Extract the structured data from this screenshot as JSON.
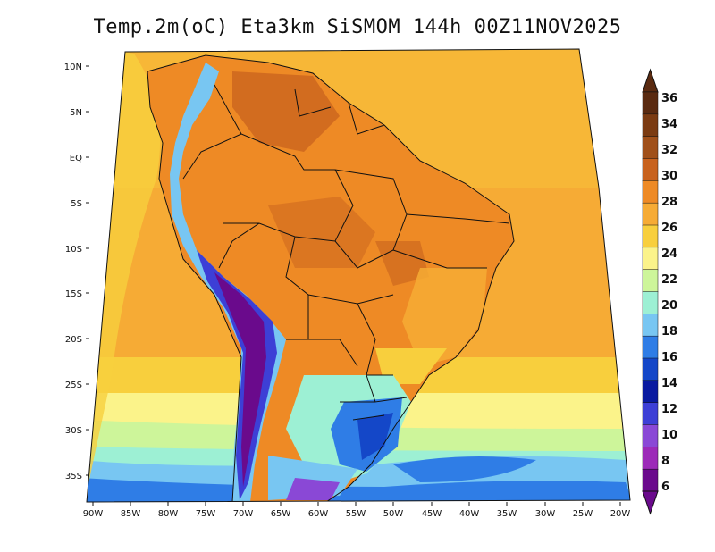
{
  "title": "Temp.2m(oC) Eta3km SiSMOM 144h 00Z11NOV2025",
  "map": {
    "lat_labels": [
      "10N",
      "5N",
      "EQ",
      "5S",
      "10S",
      "15S",
      "20S",
      "25S",
      "30S",
      "35S"
    ],
    "lon_labels": [
      "90W",
      "85W",
      "80W",
      "75W",
      "70W",
      "65W",
      "60W",
      "55W",
      "50W",
      "45W",
      "40W",
      "35W",
      "30W",
      "25W",
      "20W"
    ]
  },
  "colorbar": {
    "labels": [
      "36",
      "34",
      "32",
      "30",
      "28",
      "26",
      "24",
      "22",
      "20",
      "18",
      "16",
      "14",
      "12",
      "10",
      "8",
      "6"
    ],
    "colors": [
      "#5a2a10",
      "#7b3b12",
      "#a0501a",
      "#c8621e",
      "#ee8a25",
      "#f6ab35",
      "#f8cf3d",
      "#fbf38a",
      "#cdf59a",
      "#9df0d4",
      "#78c6f2",
      "#2f7de6",
      "#1447c8",
      "#0a1aa0",
      "#3d3fd6",
      "#8a48d6",
      "#9c2ab8",
      "#6a0a8c"
    ],
    "top_cap": "#5a2a10",
    "bottom_cap": "#6a0a8c"
  }
}
